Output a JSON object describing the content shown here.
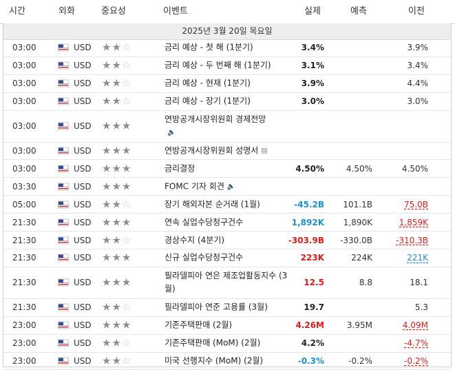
{
  "header": {
    "time": "시간",
    "currency": "외화",
    "importance": "중요성",
    "event": "이벤트",
    "actual": "실제",
    "forecast": "예측",
    "previous": "이전"
  },
  "date_label": "2025년 3월 20일 목요일",
  "rows": [
    {
      "time": "03:00",
      "currency": "USD",
      "stars": 2,
      "event": "금리 예상 - 첫 해 (1분기)",
      "icon": "",
      "actual": "3.4%",
      "actual_tone": "",
      "forecast": "",
      "previous": "3.9%",
      "previous_tone": ""
    },
    {
      "time": "03:00",
      "currency": "USD",
      "stars": 2,
      "event": "금리 예상 - 두 번째 해 (1분기)",
      "icon": "",
      "actual": "3.1%",
      "actual_tone": "",
      "forecast": "",
      "previous": "3.4%",
      "previous_tone": ""
    },
    {
      "time": "03:00",
      "currency": "USD",
      "stars": 2,
      "event": "금리 예상 - 현재 (1분기)",
      "icon": "",
      "actual": "3.9%",
      "actual_tone": "",
      "forecast": "",
      "previous": "4.4%",
      "previous_tone": ""
    },
    {
      "time": "03:00",
      "currency": "USD",
      "stars": 2,
      "event": "금리 예상 - 장기 (1분기)",
      "icon": "",
      "actual": "3.0%",
      "actual_tone": "",
      "forecast": "",
      "previous": "3.0%",
      "previous_tone": ""
    },
    {
      "time": "03:00",
      "currency": "USD",
      "stars": 3,
      "event": "연방공개시장위원회 경제전망",
      "icon": "speaker",
      "actual": "",
      "actual_tone": "",
      "forecast": "",
      "previous": "",
      "previous_tone": ""
    },
    {
      "time": "03:00",
      "currency": "USD",
      "stars": 3,
      "event": "연방공개시장위원회 성명서",
      "icon": "doc",
      "actual": "",
      "actual_tone": "",
      "forecast": "",
      "previous": "",
      "previous_tone": ""
    },
    {
      "time": "03:00",
      "currency": "USD",
      "stars": 3,
      "event": "금리결정",
      "icon": "",
      "actual": "4.50%",
      "actual_tone": "",
      "forecast": "4.50%",
      "previous": "4.50%",
      "previous_tone": ""
    },
    {
      "time": "03:30",
      "currency": "USD",
      "stars": 3,
      "event": "FOMC 기자 회견",
      "icon": "speaker",
      "actual": "",
      "actual_tone": "",
      "forecast": "",
      "previous": "",
      "previous_tone": ""
    },
    {
      "time": "05:00",
      "currency": "USD",
      "stars": 2,
      "event": "장기 해외자본 순거래 (1월)",
      "icon": "",
      "actual": "-45.2B",
      "actual_tone": "pos",
      "forecast": "101.1B",
      "previous": "75.0B",
      "previous_tone": "neg"
    },
    {
      "time": "21:30",
      "currency": "USD",
      "stars": 3,
      "event": "연속 실업수당청구건수",
      "icon": "",
      "actual": "1,892K",
      "actual_tone": "pos",
      "forecast": "1,890K",
      "previous": "1,859K",
      "previous_tone": "neg"
    },
    {
      "time": "21:30",
      "currency": "USD",
      "stars": 2,
      "event": "경상수지 (4분기)",
      "icon": "",
      "actual": "-303.9B",
      "actual_tone": "neg",
      "forecast": "-330.0B",
      "previous": "-310.3B",
      "previous_tone": "neg"
    },
    {
      "time": "21:30",
      "currency": "USD",
      "stars": 3,
      "event": "신규 실업수당청구건수",
      "icon": "",
      "actual": "223K",
      "actual_tone": "neg",
      "forecast": "224K",
      "previous": "221K",
      "previous_tone": "pos"
    },
    {
      "time": "21:30",
      "currency": "USD",
      "stars": 3,
      "event": "필라델피아 연은 제조업활동지수 (3월)",
      "icon": "",
      "actual": "12.5",
      "actual_tone": "neg",
      "forecast": "8.8",
      "previous": "18.1",
      "previous_tone": ""
    },
    {
      "time": "21:30",
      "currency": "USD",
      "stars": 2,
      "event": "필라델피아 연준 고용률 (3월)",
      "icon": "",
      "actual": "19.7",
      "actual_tone": "",
      "forecast": "",
      "previous": "5.3",
      "previous_tone": ""
    },
    {
      "time": "23:00",
      "currency": "USD",
      "stars": 3,
      "event": "기존주택판매 (2월)",
      "icon": "",
      "actual": "4.26M",
      "actual_tone": "neg",
      "forecast": "3.95M",
      "previous": "4.09M",
      "previous_tone": "neg"
    },
    {
      "time": "23:00",
      "currency": "USD",
      "stars": 2,
      "event": "기존주택판매 (MoM) (2월)",
      "icon": "",
      "actual": "4.2%",
      "actual_tone": "",
      "forecast": "",
      "previous": "-4.7%",
      "previous_tone": "neg"
    },
    {
      "time": "23:00",
      "currency": "USD",
      "stars": 2,
      "event": "미국 선행지수 (MoM) (2월)",
      "icon": "",
      "actual": "-0.3%",
      "actual_tone": "pos",
      "forecast": "-0.2%",
      "previous": "-0.2%",
      "previous_tone": "neg"
    }
  ],
  "colors": {
    "positive": "#1a8fd1",
    "negative": "#e01b1b",
    "star_active": "#8e8e8e",
    "star_inactive": "#c8c8c8",
    "date_bar": "#eeeeee"
  },
  "icons": {
    "speaker": "speaker-icon",
    "doc": "document-icon",
    "flag": "us-flag-icon"
  }
}
